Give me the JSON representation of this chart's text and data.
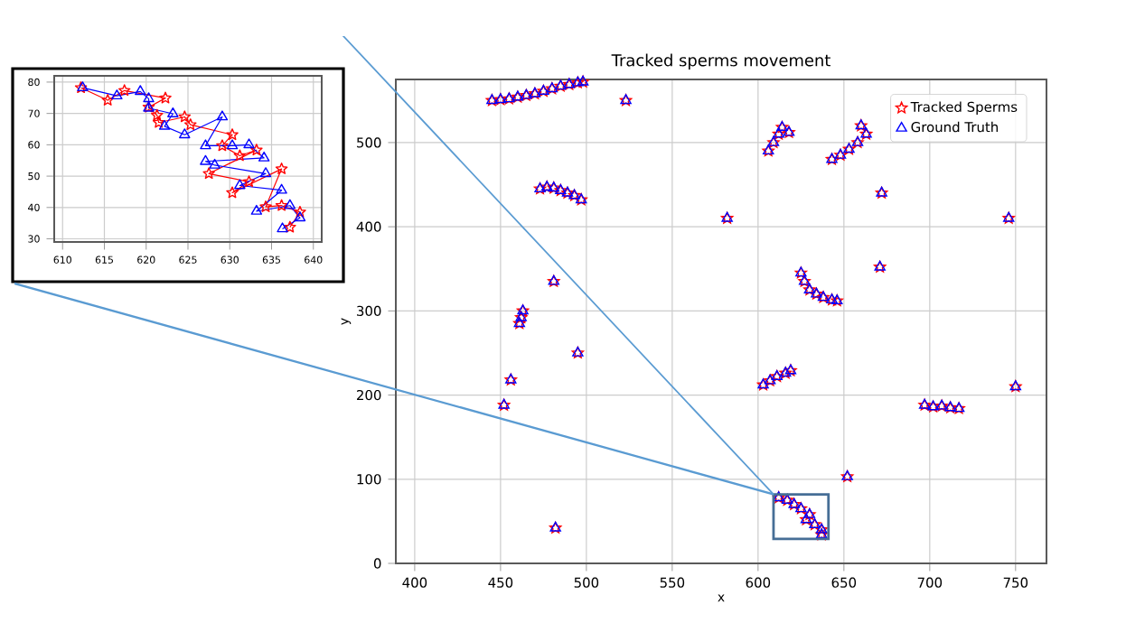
{
  "chart_data": [
    {
      "type": "scatter",
      "title": "Tracked sperms movement",
      "xlabel": "x",
      "ylabel": "y",
      "xlim": [
        389,
        768
      ],
      "ylim": [
        0,
        575
      ],
      "xticks": [
        400,
        450,
        500,
        550,
        600,
        650,
        700,
        750
      ],
      "yticks": [
        0,
        100,
        200,
        300,
        400,
        500
      ],
      "grid": true,
      "legend": "top right",
      "series": [
        {
          "name": "Tracked Sperms",
          "color": "#ff0000",
          "marker": "star",
          "x": [
            445,
            450,
            455,
            460,
            465,
            470,
            475,
            480,
            485,
            490,
            495,
            498,
            523,
            473,
            477,
            481,
            485,
            489,
            493,
            497,
            481,
            461,
            462,
            463,
            495,
            456,
            452,
            482,
            582,
            606,
            609,
            612,
            614,
            618,
            643,
            648,
            653,
            658,
            663,
            660,
            672,
            671,
            746,
            625,
            627,
            630,
            634,
            638,
            643,
            646,
            603,
            607,
            611,
            616,
            619,
            697,
            702,
            707,
            712,
            717,
            750,
            652,
            612,
            617,
            621,
            625,
            630,
            628,
            633,
            637,
            637
          ],
          "values": [
            550,
            551,
            552,
            554,
            556,
            558,
            561,
            564,
            567,
            569,
            571,
            572,
            550,
            445,
            447,
            446,
            443,
            440,
            437,
            432,
            335,
            285,
            292,
            300,
            250,
            218,
            188,
            42,
            410,
            490,
            500,
            510,
            518,
            512,
            480,
            485,
            492,
            500,
            510,
            520,
            440,
            352,
            410,
            345,
            335,
            325,
            320,
            316,
            313,
            312,
            212,
            217,
            222,
            226,
            229,
            188,
            186,
            187,
            185,
            184,
            210,
            103,
            78,
            75,
            70,
            65,
            58,
            52,
            46,
            40,
            34
          ]
        },
        {
          "name": "Ground Truth",
          "color": "#0000ff",
          "marker": "triangle",
          "x": [
            445,
            450,
            455,
            460,
            465,
            470,
            475,
            480,
            485,
            490,
            495,
            498,
            523,
            473,
            477,
            481,
            485,
            489,
            493,
            497,
            481,
            461,
            462,
            463,
            495,
            456,
            452,
            482,
            582,
            606,
            609,
            612,
            614,
            618,
            643,
            648,
            653,
            658,
            663,
            660,
            672,
            671,
            746,
            625,
            627,
            630,
            634,
            638,
            643,
            646,
            603,
            607,
            611,
            616,
            619,
            697,
            702,
            707,
            712,
            717,
            750,
            652,
            612,
            617,
            621,
            625,
            630,
            628,
            633,
            637,
            637
          ],
          "values": [
            550,
            551,
            552,
            554,
            556,
            558,
            561,
            564,
            567,
            569,
            571,
            572,
            550,
            445,
            447,
            446,
            443,
            440,
            437,
            432,
            335,
            285,
            292,
            300,
            250,
            218,
            188,
            42,
            410,
            490,
            500,
            510,
            518,
            512,
            480,
            485,
            492,
            500,
            510,
            520,
            440,
            352,
            410,
            345,
            335,
            325,
            320,
            316,
            313,
            312,
            212,
            217,
            222,
            226,
            229,
            188,
            186,
            187,
            185,
            184,
            210,
            103,
            78,
            75,
            70,
            65,
            58,
            52,
            46,
            40,
            34
          ]
        }
      ]
    },
    {
      "type": "line",
      "xlim": [
        609,
        641
      ],
      "ylim": [
        29,
        82
      ],
      "xticks": [
        610,
        615,
        620,
        625,
        630,
        635,
        640
      ],
      "yticks": [
        30,
        40,
        50,
        60,
        70,
        80
      ],
      "grid": true,
      "series": [
        {
          "color": "#ff0000",
          "marker": "star",
          "x": [
            612.2,
            615.4,
            617.4,
            622.3,
            620.3,
            621.3,
            621.5,
            624.6,
            625.3,
            630.3,
            629.1,
            631.2,
            633.2,
            627.5,
            632.3,
            630.3,
            636.2,
            634.3,
            636.2,
            638.4,
            637.2
          ],
          "values": [
            78.2,
            74.2,
            77.3,
            74.9,
            72.0,
            69.4,
            67.1,
            68.9,
            66.4,
            63.2,
            59.7,
            56.5,
            58.3,
            50.8,
            48.2,
            44.7,
            52.3,
            40.2,
            40.6,
            38.5,
            33.7
          ]
        },
        {
          "color": "#0000ff",
          "marker": "triangle",
          "x": [
            612.4,
            616.5,
            619.3,
            620.3,
            620.3,
            623.2,
            622.2,
            624.6,
            629.1,
            627.1,
            630.3,
            632.3,
            634.1,
            627.1,
            628.2,
            634.3,
            631.2,
            636.2,
            633.2,
            637.2,
            638.4,
            636.3
          ],
          "values": [
            78.2,
            75.6,
            77.0,
            74.7,
            71.7,
            69.9,
            65.9,
            63.2,
            68.9,
            59.7,
            59.7,
            60.0,
            55.8,
            54.7,
            53.5,
            50.8,
            47.0,
            45.5,
            38.8,
            40.6,
            36.7,
            33.2
          ]
        }
      ]
    }
  ]
}
